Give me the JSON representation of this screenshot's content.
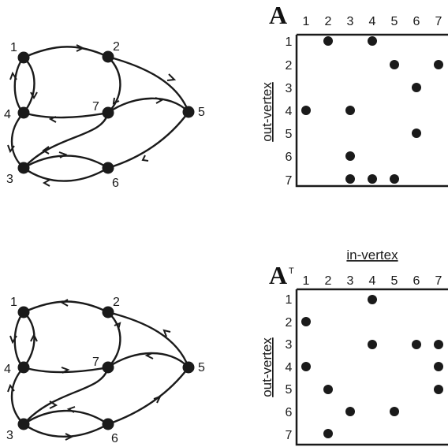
{
  "top": {
    "matrix_symbol": "A",
    "superscript": "",
    "col_header_label": "",
    "row_axis_label": "out-vertex",
    "row_labels": [
      "1",
      "2",
      "3",
      "4",
      "5",
      "6",
      "7"
    ],
    "col_labels": [
      "1",
      "2",
      "3",
      "4",
      "5",
      "6",
      "7"
    ],
    "entries": [
      [
        1,
        2
      ],
      [
        1,
        4
      ],
      [
        2,
        5
      ],
      [
        2,
        7
      ],
      [
        3,
        6
      ],
      [
        4,
        1
      ],
      [
        4,
        3
      ],
      [
        5,
        6
      ],
      [
        6,
        3
      ],
      [
        7,
        3
      ],
      [
        7,
        4
      ],
      [
        7,
        5
      ]
    ],
    "node_labels": [
      "1",
      "2",
      "3",
      "4",
      "5",
      "6",
      "7"
    ]
  },
  "bottom": {
    "matrix_symbol": "A",
    "superscript": "T",
    "col_header_label": "in-vertex",
    "row_axis_label": "out-vertex",
    "row_labels": [
      "1",
      "2",
      "3",
      "4",
      "5",
      "6",
      "7"
    ],
    "col_labels": [
      "1",
      "2",
      "3",
      "4",
      "5",
      "6",
      "7"
    ],
    "entries": [
      [
        1,
        4
      ],
      [
        2,
        1
      ],
      [
        3,
        4
      ],
      [
        3,
        6
      ],
      [
        3,
        7
      ],
      [
        4,
        1
      ],
      [
        4,
        7
      ],
      [
        5,
        2
      ],
      [
        5,
        7
      ],
      [
        6,
        3
      ],
      [
        6,
        5
      ],
      [
        7,
        2
      ]
    ],
    "node_labels": [
      "1",
      "2",
      "3",
      "4",
      "5",
      "6",
      "7"
    ]
  },
  "colors": {
    "ink": "#1a1a1a",
    "background": "#ffffff"
  }
}
